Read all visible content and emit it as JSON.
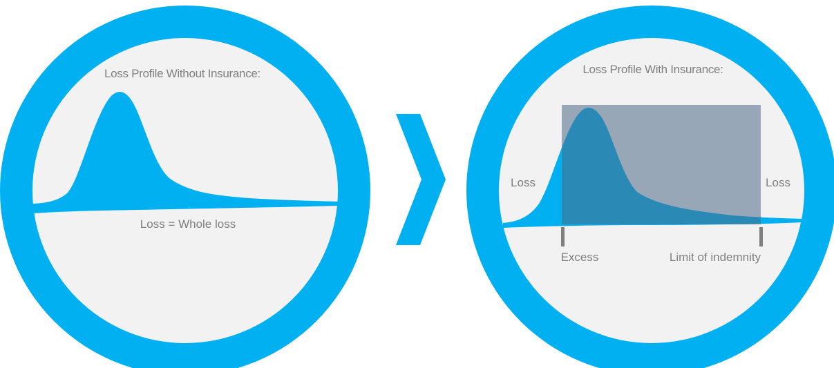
{
  "colors": {
    "ring": "#00b0f0",
    "inner": "#f2f2f2",
    "curve": "#00b0f0",
    "insured_band": "#4e6a86",
    "text": "#7f7f7f",
    "marker": "#7f7f7f"
  },
  "left_panel": {
    "title": "Loss Profile Without Insurance:",
    "caption": "Loss = Whole loss"
  },
  "arrow": {
    "icon": "chevron-right-icon"
  },
  "right_panel": {
    "title": "Loss Profile With Insurance:",
    "left_label": "Loss",
    "right_label": "Loss",
    "excess_label": "Excess",
    "limit_label": "Limit of indemnity"
  }
}
